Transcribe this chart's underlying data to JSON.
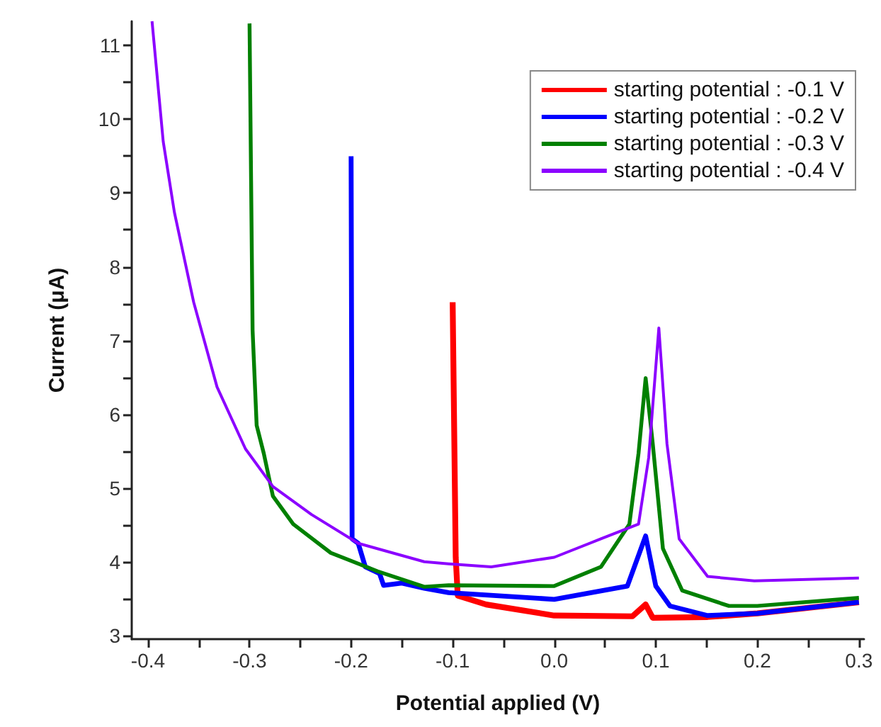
{
  "chart_data": {
    "type": "line",
    "xlabel": "Potential applied (V)",
    "ylabel": "Current (μA)",
    "xlim": [
      -0.416,
      0.305
    ],
    "ylim": [
      2.95,
      11.33
    ],
    "xticks": [
      {
        "value": -0.4,
        "label": "-0.4"
      },
      {
        "value": -0.3,
        "label": "-0.3"
      },
      {
        "value": -0.2,
        "label": "-0.2"
      },
      {
        "value": -0.1,
        "label": "-0.1"
      },
      {
        "value": 0,
        "label": "0.0"
      },
      {
        "value": 0.1,
        "label": "0.1"
      },
      {
        "value": 0.2,
        "label": "0.2"
      },
      {
        "value": 0.3,
        "label": "0.3"
      }
    ],
    "yticks": [
      3,
      4,
      5,
      6,
      7,
      8,
      9,
      10,
      11
    ],
    "grid": false,
    "legend": "top right",
    "marker": "none",
    "line_style": "solid",
    "series": [
      {
        "name": "starting potential : -0.1 V",
        "color": "#ff0000",
        "x": [
          -0.1,
          -0.097,
          -0.095,
          -0.067,
          0.0,
          0.077,
          0.09,
          0.097,
          0.151,
          0.2,
          0.3
        ],
        "values": [
          7.52,
          4.06,
          3.54,
          3.42,
          3.27,
          3.26,
          3.42,
          3.24,
          3.25,
          3.3,
          3.45
        ]
      },
      {
        "name": "starting potential : -0.2 V",
        "color": "#0000ff",
        "x": [
          -0.2,
          -0.199,
          -0.193,
          -0.186,
          -0.172,
          -0.168,
          -0.15,
          -0.128,
          -0.104,
          0.0,
          0.072,
          0.09,
          0.1,
          0.114,
          0.151,
          0.2,
          0.3
        ],
        "values": [
          9.5,
          4.31,
          4.25,
          3.93,
          3.84,
          3.68,
          3.71,
          3.64,
          3.58,
          3.49,
          3.67,
          4.35,
          3.67,
          3.4,
          3.27,
          3.3,
          3.45
        ]
      },
      {
        "name": "starting potential : -0.3 V",
        "color": "#008000",
        "x": [
          -0.3,
          -0.297,
          -0.293,
          -0.286,
          -0.277,
          -0.257,
          -0.22,
          -0.174,
          -0.128,
          -0.104,
          0.0,
          0.046,
          0.074,
          0.083,
          0.09,
          0.097,
          0.107,
          0.126,
          0.172,
          0.2,
          0.3
        ],
        "values": [
          11.3,
          7.14,
          5.85,
          5.47,
          4.89,
          4.51,
          4.12,
          3.87,
          3.66,
          3.68,
          3.67,
          3.93,
          4.51,
          5.47,
          6.49,
          5.6,
          4.18,
          3.61,
          3.4,
          3.4,
          3.51
        ]
      },
      {
        "name": "starting potential : -0.4 V",
        "color": "#8b00ff",
        "x": [
          -0.396,
          -0.385,
          -0.374,
          -0.355,
          -0.332,
          -0.304,
          -0.277,
          -0.239,
          -0.193,
          -0.128,
          -0.104,
          -0.062,
          0.0,
          0.046,
          0.083,
          0.093,
          0.103,
          0.111,
          0.123,
          0.151,
          0.197,
          0.3
        ],
        "values": [
          11.33,
          9.7,
          8.74,
          7.52,
          6.37,
          5.53,
          5.02,
          4.64,
          4.25,
          4.0,
          3.97,
          3.93,
          4.06,
          4.31,
          4.51,
          5.41,
          7.17,
          5.6,
          4.31,
          3.8,
          3.74,
          3.78
        ]
      }
    ]
  }
}
